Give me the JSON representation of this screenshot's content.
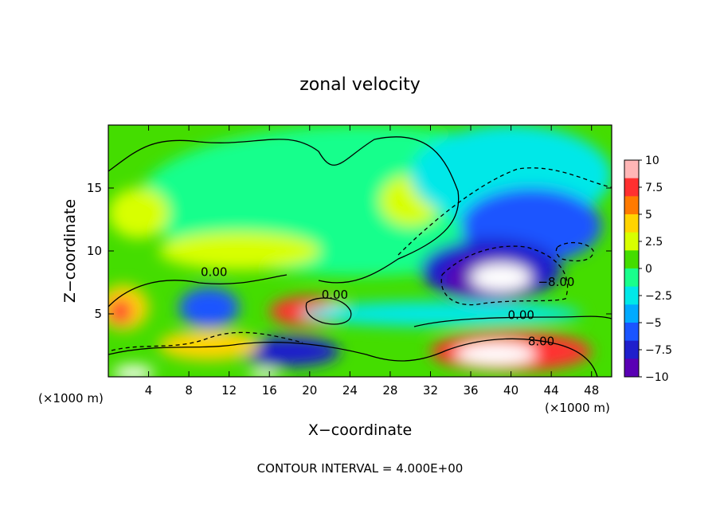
{
  "chart_data": {
    "type": "heatmap",
    "title": "zonal velocity",
    "xlabel": "X−coordinate",
    "ylabel": "Z−coordinate",
    "x_unit_left": "(×1000 m)",
    "x_unit_right": "(×1000 m)",
    "footer": "CONTOUR INTERVAL = 4.000E+00",
    "xlim": [
      0,
      50
    ],
    "ylim": [
      0,
      20
    ],
    "x_ticks": [
      4,
      8,
      12,
      16,
      20,
      24,
      28,
      32,
      36,
      40,
      44,
      48
    ],
    "y_ticks": [
      5,
      10,
      15
    ],
    "colorbar": {
      "levels": [
        10,
        7.5,
        5,
        2.5,
        0,
        -2.5,
        -5,
        -7.5,
        -10
      ],
      "labels": [
        "10",
        "7.5",
        "5",
        "2.5",
        "0",
        "−2.5",
        "−5",
        "−7.5",
        "−10"
      ],
      "colors": [
        "#ffb6b6",
        "#ff3030",
        "#ff7a00",
        "#ffd400",
        "#d8ff00",
        "#44dd00",
        "#19ff8c",
        "#00e8e8",
        "#00aaff",
        "#1a55ff",
        "#1f1fcc",
        "#5a00b4"
      ]
    },
    "contour_labels": [
      {
        "text": "0.00",
        "x": 10.5,
        "z": 8.0
      },
      {
        "text": "0.00",
        "x": 22.5,
        "z": 6.2
      },
      {
        "text": "0.00",
        "x": 41.0,
        "z": 4.6
      },
      {
        "text": "8.00",
        "x": 43.0,
        "z": 2.5
      },
      {
        "text": "−8.00",
        "x": 44.5,
        "z": 7.2
      }
    ],
    "features": [
      {
        "value": 0,
        "x": 25,
        "z": 14,
        "rx": 22,
        "rz": 6
      },
      {
        "value": 2.5,
        "x": 3,
        "z": 13,
        "rx": 3,
        "rz": 2
      },
      {
        "value": 2.5,
        "x": 30,
        "z": 14,
        "rx": 3,
        "rz": 2
      },
      {
        "value": 2.5,
        "x": 13,
        "z": 10,
        "rx": 8,
        "rz": 1.5
      },
      {
        "value": -2.5,
        "x": 40,
        "z": 16,
        "rx": 10,
        "rz": 4
      },
      {
        "value": -5,
        "x": 42,
        "z": 12,
        "rx": 7,
        "rz": 3
      },
      {
        "value": -7.5,
        "x": 38,
        "z": 8.5,
        "rx": 7,
        "rz": 2.5
      },
      {
        "value": -10,
        "x": 38,
        "z": 7.8,
        "rx": 4.5,
        "rz": 1.8
      },
      {
        "value": -14,
        "x": 39,
        "z": 7.9,
        "rx": 3,
        "rz": 1.1
      },
      {
        "value": 5,
        "x": 1.5,
        "z": 5.5,
        "rx": 2.5,
        "rz": 1.8
      },
      {
        "value": 7.5,
        "x": 1.2,
        "z": 5.2,
        "rx": 1.2,
        "rz": 1
      },
      {
        "value": -5,
        "x": 10,
        "z": 5.5,
        "rx": 3,
        "rz": 1.6
      },
      {
        "value": 7.5,
        "x": 20,
        "z": 5.2,
        "rx": 4,
        "rz": 1.2
      },
      {
        "value": 12,
        "x": 22.8,
        "z": 5.1,
        "rx": 1.6,
        "rz": 0.8
      },
      {
        "value": -7.5,
        "x": 18,
        "z": 2,
        "rx": 5,
        "rz": 1.2
      },
      {
        "value": 5,
        "x": 10,
        "z": 2.5,
        "rx": 5,
        "rz": 1.2
      },
      {
        "value": 7.5,
        "x": 40,
        "z": 2,
        "rx": 8,
        "rz": 1.6
      },
      {
        "value": 12,
        "x": 38.5,
        "z": 1.8,
        "rx": 4,
        "rz": 0.9
      },
      {
        "value": 12,
        "x": 2.5,
        "z": 0.3,
        "rx": 2,
        "rz": 0.6
      },
      {
        "value": 12,
        "x": 15.5,
        "z": 0.2,
        "rx": 1.5,
        "rz": 0.4
      },
      {
        "value": -2.5,
        "x": 33,
        "z": 5,
        "rx": 14,
        "rz": 1
      }
    ]
  }
}
